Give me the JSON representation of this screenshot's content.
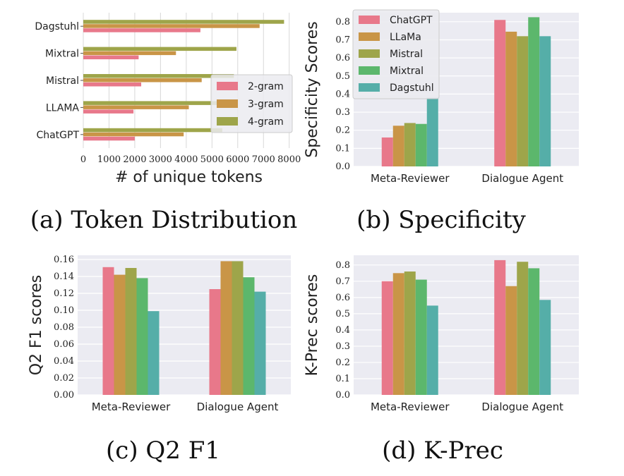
{
  "colors": {
    "ChatGPT": "#e8788a",
    "LLaMa": "#c99547",
    "Mistral": "#9ea54a",
    "Mixtral": "#5cb76c",
    "Dagstuhl": "#55aea8",
    "gram2": "#e8788a",
    "gram3": "#c99547",
    "gram4": "#9ea54a",
    "grid": "#d8d8d8",
    "plotbg": "#ebebf2"
  },
  "captions": {
    "a": "(a) Token Distribution",
    "b": "(b) Specificity",
    "c": "(c) Q2 F1",
    "d": "(d) K-Prec"
  },
  "chart_data": [
    {
      "id": "a",
      "type": "bar",
      "orientation": "horizontal",
      "title": "(a) Token Distribution",
      "xlabel": "# of unique tokens",
      "ylabel": "",
      "categories": [
        "ChatGPT",
        "LLAMA",
        "Mistral",
        "Mixtral",
        "Dagstuhl"
      ],
      "xlim": [
        0,
        8200
      ],
      "xticks": [
        0,
        1000,
        2000,
        3000,
        4000,
        5000,
        6000,
        7000,
        8000
      ],
      "legend_position": "center-right",
      "legend": [
        "2-gram",
        "3-gram",
        "4-gram"
      ],
      "series": [
        {
          "name": "2-gram",
          "values": [
            2000,
            1950,
            2250,
            2150,
            4550
          ]
        },
        {
          "name": "3-gram",
          "values": [
            3900,
            4100,
            4600,
            3600,
            6850
          ]
        },
        {
          "name": "4-gram",
          "values": [
            5400,
            5500,
            5850,
            5950,
            7800
          ]
        }
      ]
    },
    {
      "id": "b",
      "type": "bar",
      "title": "(b) Specificity",
      "xlabel": "",
      "ylabel": "Specificity Scores",
      "categories": [
        "Meta-Reviewer",
        "Dialogue Agent"
      ],
      "ylim": [
        0,
        0.85
      ],
      "yticks": [
        0.0,
        0.1,
        0.2,
        0.3,
        0.4,
        0.5,
        0.6,
        0.7,
        0.8
      ],
      "legend_position": "top-left",
      "legend": [
        "ChatGPT",
        "LLaMa",
        "Mistral",
        "Mixtral",
        "Dagstuhl"
      ],
      "series": [
        {
          "name": "ChatGPT",
          "values": [
            0.16,
            0.81
          ]
        },
        {
          "name": "LLaMa",
          "values": [
            0.225,
            0.745
          ]
        },
        {
          "name": "Mistral",
          "values": [
            0.24,
            0.72
          ]
        },
        {
          "name": "Mixtral",
          "values": [
            0.235,
            0.825
          ]
        },
        {
          "name": "Dagstuhl",
          "values": [
            0.38,
            0.72
          ]
        }
      ]
    },
    {
      "id": "c",
      "type": "bar",
      "title": "(c) Q2 F1",
      "xlabel": "",
      "ylabel": "Q2 F1 scores",
      "categories": [
        "Meta-Reviewer",
        "Dialogue Agent"
      ],
      "ylim": [
        0,
        0.165
      ],
      "yticks": [
        0.0,
        0.02,
        0.04,
        0.06,
        0.08,
        0.1,
        0.12,
        0.14,
        0.16
      ],
      "legend_position": "none",
      "series": [
        {
          "name": "ChatGPT",
          "values": [
            0.151,
            0.125
          ]
        },
        {
          "name": "LLaMa",
          "values": [
            0.142,
            0.158
          ]
        },
        {
          "name": "Mistral",
          "values": [
            0.15,
            0.158
          ]
        },
        {
          "name": "Mixtral",
          "values": [
            0.138,
            0.139
          ]
        },
        {
          "name": "Dagstuhl",
          "values": [
            0.099,
            0.122
          ]
        }
      ]
    },
    {
      "id": "d",
      "type": "bar",
      "title": "(d) K-Prec",
      "xlabel": "",
      "ylabel": "K-Prec scores",
      "categories": [
        "Meta-Reviewer",
        "Dialogue Agent"
      ],
      "ylim": [
        0,
        0.86
      ],
      "yticks": [
        0.0,
        0.1,
        0.2,
        0.3,
        0.4,
        0.5,
        0.6,
        0.7,
        0.8
      ],
      "legend_position": "none",
      "series": [
        {
          "name": "ChatGPT",
          "values": [
            0.7,
            0.83
          ]
        },
        {
          "name": "LLaMa",
          "values": [
            0.75,
            0.67
          ]
        },
        {
          "name": "Mistral",
          "values": [
            0.76,
            0.82
          ]
        },
        {
          "name": "Mixtral",
          "values": [
            0.71,
            0.78
          ]
        },
        {
          "name": "Dagstuhl",
          "values": [
            0.55,
            0.585
          ]
        }
      ]
    }
  ]
}
